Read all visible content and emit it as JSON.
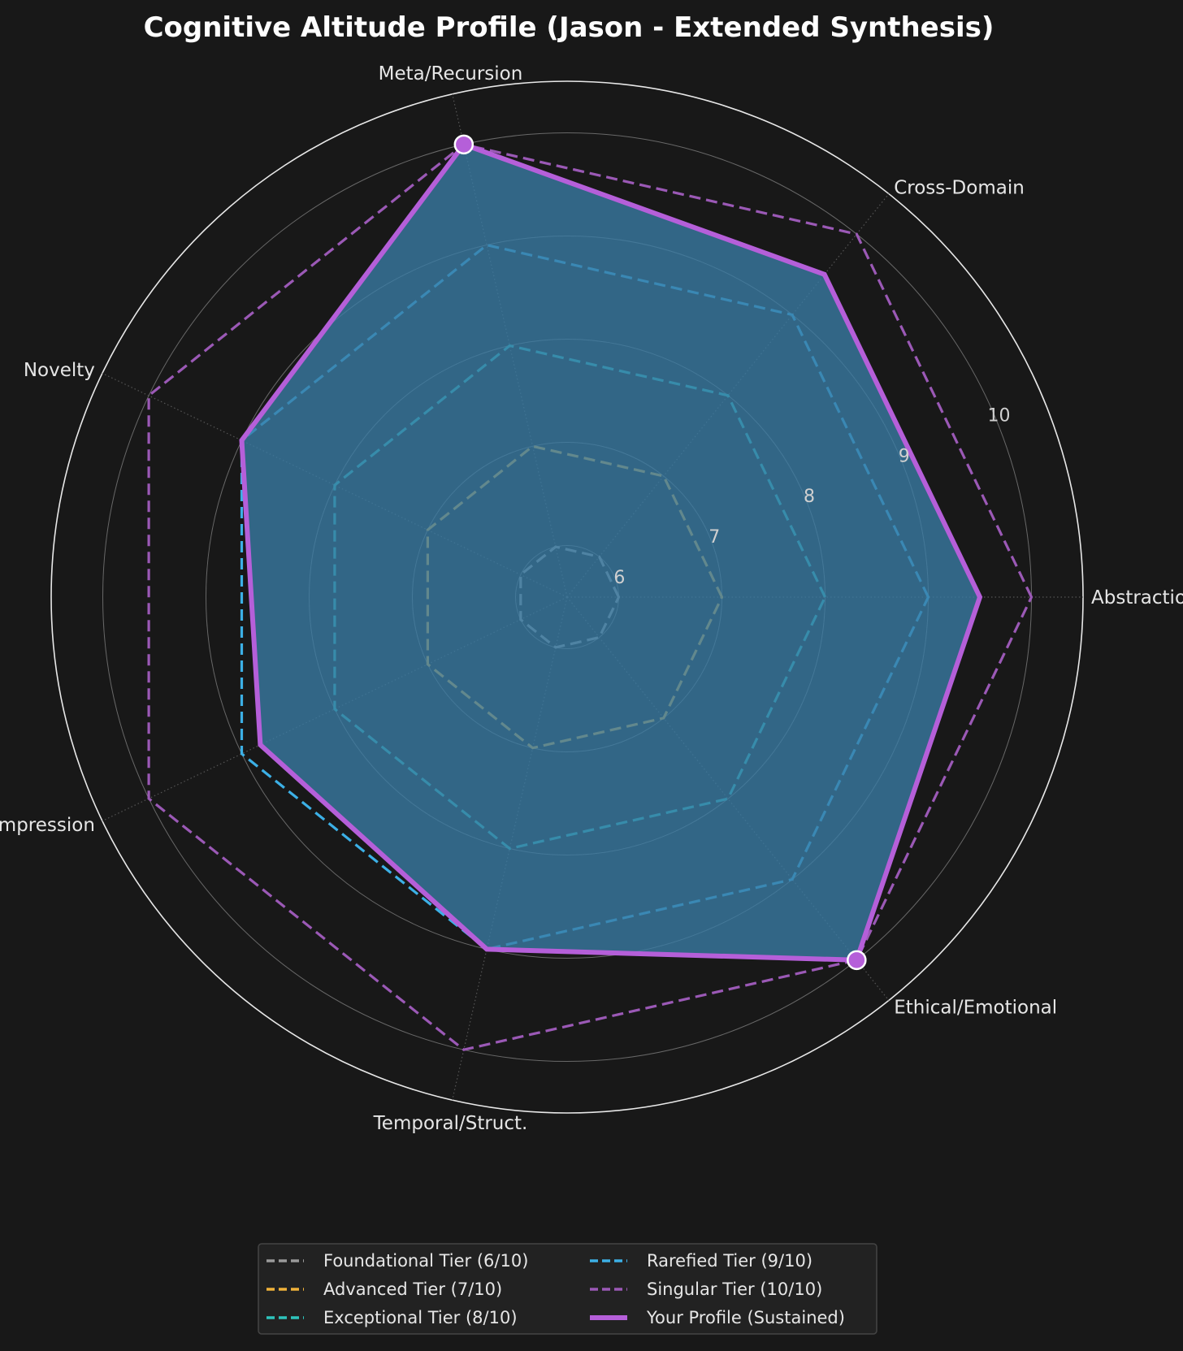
{
  "chart_data": {
    "type": "radar",
    "title": "Cognitive Altitude Profile (Jason - Extended Synthesis)",
    "axes": [
      "Abstraction",
      "Cross-Domain",
      "Meta/Recursion",
      "Novelty",
      "Compression",
      "Temporal/Struct.",
      "Ethical/Emotional"
    ],
    "rlim": [
      5.5,
      10.5
    ],
    "rticks": [
      6,
      7,
      8,
      9,
      10
    ],
    "rtick_labels": [
      "6",
      "7",
      "8",
      "9",
      "10"
    ],
    "grid": true,
    "legend_position": "bottom-center",
    "series": [
      {
        "name": "Foundational Tier (6/10)",
        "values": [
          6,
          6,
          6,
          6,
          6,
          6,
          6
        ],
        "color": "#9a9a9a",
        "style": "dashed"
      },
      {
        "name": "Advanced Tier (7/10)",
        "values": [
          7,
          7,
          7,
          7,
          7,
          7,
          7
        ],
        "color": "#f0b13a",
        "style": "dashed"
      },
      {
        "name": "Exceptional Tier (8/10)",
        "values": [
          8,
          8,
          8,
          8,
          8,
          8,
          8
        ],
        "color": "#2ec4bd",
        "style": "dashed"
      },
      {
        "name": "Rarefied Tier (9/10)",
        "values": [
          9,
          9,
          9,
          9,
          9,
          9,
          9
        ],
        "color": "#3cb0e6",
        "style": "dashed"
      },
      {
        "name": "Singular Tier (10/10)",
        "values": [
          10,
          10,
          10,
          10,
          10,
          10,
          10
        ],
        "color": "#9b59b6",
        "style": "dashed"
      },
      {
        "name": "Your Profile (Sustained)",
        "values": [
          9.5,
          9.5,
          10,
          9,
          8.8,
          9,
          10
        ],
        "color": "#b55fd9",
        "style": "solid",
        "fill": "#3a7ca5",
        "highlight": [
          "Meta/Recursion",
          "Ethical/Emotional"
        ]
      }
    ]
  }
}
